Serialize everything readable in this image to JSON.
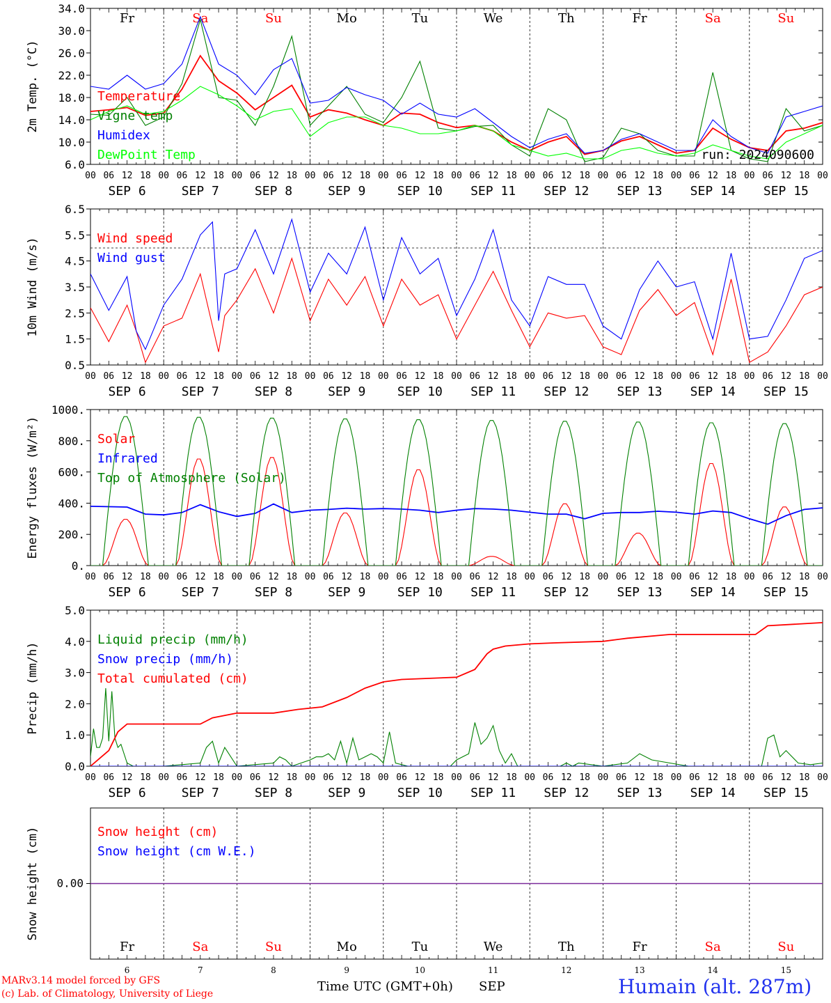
{
  "chart_data": [
    {
      "type": "line",
      "id": "temp",
      "ylabel": "2m Temp. (°C)",
      "ylim": [
        6,
        34
      ],
      "yticks": [
        "6.0",
        "10.0",
        "14.0",
        "18.0",
        "22.0",
        "26.0",
        "30.0",
        "34.0"
      ],
      "day_names": [
        "Fr",
        "Sa",
        "Su",
        "Mo",
        "Tu",
        "We",
        "Th",
        "Fr",
        "Sa",
        "Su"
      ],
      "weekend_indices": [
        1,
        2,
        8,
        9
      ],
      "annotation": "run: 2024090600",
      "series": [
        {
          "name": "Temperature",
          "color": "#ff0000",
          "x": [
            0,
            6,
            12,
            18,
            24,
            30,
            36,
            42,
            48,
            54,
            60,
            66,
            72,
            78,
            84,
            90,
            96,
            102,
            108,
            114,
            120,
            126,
            132,
            138,
            144,
            150,
            156,
            162,
            168,
            174,
            180,
            186,
            192,
            198,
            204,
            210,
            216,
            222,
            228,
            234,
            240
          ],
          "values": [
            15.5,
            15.8,
            16.2,
            14.8,
            15.2,
            19.5,
            25.5,
            21.0,
            18.8,
            15.8,
            18.0,
            20.2,
            14.5,
            15.8,
            15.2,
            14.0,
            13.0,
            15.2,
            15.0,
            13.5,
            12.6,
            13.0,
            12.0,
            10.0,
            8.5,
            10.0,
            11.0,
            7.8,
            8.5,
            10.2,
            11.0,
            9.5,
            8.0,
            8.5,
            12.5,
            10.5,
            9.0,
            8.5,
            12.0,
            12.5,
            13.5
          ]
        },
        {
          "name": "Vigne temp",
          "color": "#008000",
          "x": [
            0,
            6,
            12,
            18,
            24,
            30,
            36,
            42,
            48,
            54,
            60,
            66,
            72,
            78,
            84,
            90,
            96,
            102,
            108,
            114,
            120,
            126,
            132,
            138,
            144,
            150,
            156,
            162,
            168,
            174,
            180,
            186,
            192,
            198,
            204,
            210,
            216,
            222,
            228,
            234,
            240
          ],
          "values": [
            15.0,
            14.8,
            18.0,
            13.0,
            14.5,
            20.5,
            32.0,
            18.0,
            17.5,
            13.0,
            20.0,
            29.0,
            13.0,
            16.5,
            20.0,
            15.0,
            13.5,
            18.0,
            24.5,
            12.5,
            12.0,
            12.8,
            13.0,
            9.5,
            7.5,
            16.0,
            14.0,
            6.5,
            7.2,
            12.5,
            11.5,
            8.5,
            7.5,
            7.5,
            22.5,
            8.5,
            7.0,
            6.5,
            16.0,
            12.0,
            13.0
          ]
        },
        {
          "name": "Humidex",
          "color": "#0000ff",
          "x": [
            0,
            6,
            12,
            18,
            24,
            30,
            36,
            42,
            48,
            54,
            60,
            66,
            72,
            78,
            84,
            90,
            96,
            102,
            108,
            114,
            120,
            126,
            132,
            138,
            144,
            150,
            156,
            162,
            168,
            174,
            180,
            186,
            192,
            198,
            204,
            210,
            216,
            222,
            228,
            234,
            240
          ],
          "values": [
            20.0,
            19.5,
            22.0,
            19.5,
            20.5,
            24.0,
            32.5,
            24.0,
            22.0,
            18.5,
            23.0,
            25.0,
            17.0,
            17.5,
            19.8,
            18.5,
            17.5,
            15.0,
            17.0,
            15.0,
            14.5,
            16.0,
            13.5,
            11.0,
            9.0,
            10.5,
            11.5,
            8.0,
            8.5,
            10.5,
            11.5,
            10.0,
            8.5,
            8.5,
            14.0,
            11.0,
            9.0,
            8.0,
            14.5,
            15.5,
            16.5
          ]
        },
        {
          "name": "DewPoint Temp",
          "color": "#00ff00",
          "x": [
            0,
            6,
            12,
            18,
            24,
            30,
            36,
            42,
            48,
            54,
            60,
            66,
            72,
            78,
            84,
            90,
            96,
            102,
            108,
            114,
            120,
            126,
            132,
            138,
            144,
            150,
            156,
            162,
            168,
            174,
            180,
            186,
            192,
            198,
            204,
            210,
            216,
            222,
            228,
            234,
            240
          ],
          "values": [
            14.0,
            15.5,
            16.5,
            15.0,
            15.5,
            17.5,
            20.0,
            18.5,
            16.5,
            14.0,
            15.5,
            16.0,
            11.0,
            13.5,
            14.5,
            14.5,
            13.0,
            12.5,
            11.5,
            11.5,
            12.0,
            13.0,
            12.0,
            9.5,
            8.5,
            7.5,
            8.0,
            7.0,
            7.0,
            8.5,
            9.0,
            8.0,
            7.5,
            8.0,
            9.5,
            8.5,
            7.5,
            7.0,
            10.0,
            11.5,
            13.0
          ]
        }
      ]
    },
    {
      "type": "line",
      "id": "wind",
      "ylabel": "10m Wind (m/s)",
      "ylim": [
        0.5,
        6.5
      ],
      "yticks": [
        "0.5",
        "1.5",
        "2.5",
        "3.5",
        "4.5",
        "5.5",
        "6.5"
      ],
      "ref_line": 5.0,
      "series": [
        {
          "name": "Wind speed",
          "color": "#ff0000",
          "x": [
            0,
            6,
            12,
            15,
            18,
            24,
            30,
            36,
            40,
            42,
            44,
            48,
            54,
            60,
            66,
            72,
            78,
            84,
            90,
            96,
            102,
            108,
            114,
            120,
            126,
            132,
            138,
            144,
            150,
            156,
            162,
            168,
            174,
            180,
            186,
            192,
            198,
            204,
            210,
            216,
            222,
            228,
            234,
            240
          ],
          "values": [
            2.7,
            1.4,
            2.8,
            1.8,
            0.6,
            2.0,
            2.3,
            4.0,
            2.0,
            1.0,
            2.4,
            3.0,
            4.2,
            2.5,
            4.6,
            2.2,
            3.8,
            2.8,
            3.9,
            2.0,
            3.8,
            2.8,
            3.2,
            1.5,
            2.8,
            4.1,
            2.6,
            1.2,
            2.5,
            2.3,
            2.4,
            1.2,
            0.9,
            2.6,
            3.4,
            2.4,
            2.9,
            0.9,
            3.8,
            0.6,
            1.0,
            2.0,
            3.2,
            3.5
          ]
        },
        {
          "name": "Wind gust",
          "color": "#0000ff",
          "x": [
            0,
            6,
            12,
            15,
            18,
            24,
            30,
            36,
            40,
            42,
            44,
            48,
            54,
            60,
            66,
            72,
            78,
            84,
            90,
            96,
            102,
            108,
            114,
            120,
            126,
            132,
            138,
            144,
            150,
            156,
            162,
            168,
            174,
            180,
            186,
            192,
            198,
            204,
            210,
            216,
            222,
            228,
            234,
            240
          ],
          "values": [
            4.0,
            2.6,
            3.9,
            1.8,
            1.1,
            2.8,
            3.8,
            5.5,
            6.0,
            2.2,
            4.0,
            4.2,
            5.7,
            4.0,
            6.1,
            3.3,
            4.8,
            4.0,
            5.8,
            3.0,
            5.4,
            4.0,
            4.6,
            2.4,
            3.8,
            5.7,
            3.0,
            2.0,
            3.9,
            3.6,
            3.6,
            2.0,
            1.5,
            3.4,
            4.5,
            3.5,
            3.7,
            1.5,
            4.8,
            1.5,
            1.6,
            3.0,
            4.6,
            4.9
          ]
        }
      ]
    },
    {
      "type": "line",
      "id": "energy",
      "ylabel": "Energy fluxes (W/m²)",
      "ylim": [
        0,
        1000
      ],
      "yticks": [
        "0.",
        "200.",
        "400.",
        "600.",
        "800.",
        "1000."
      ],
      "series": [
        {
          "name": "Solar",
          "color": "#ff0000",
          "daily_peaks": [
            300,
            690,
            700,
            340,
            620,
            60,
            400,
            210,
            660,
            380
          ]
        },
        {
          "name": "Infrared",
          "color": "#0000ff",
          "x": [
            0,
            12,
            18,
            24,
            30,
            36,
            42,
            48,
            54,
            60,
            66,
            72,
            78,
            84,
            90,
            96,
            102,
            108,
            114,
            120,
            126,
            132,
            138,
            144,
            150,
            156,
            162,
            168,
            174,
            180,
            186,
            192,
            198,
            204,
            210,
            216,
            222,
            228,
            234,
            240
          ],
          "values": [
            380,
            375,
            330,
            325,
            340,
            390,
            345,
            315,
            335,
            395,
            340,
            355,
            360,
            368,
            362,
            365,
            362,
            355,
            340,
            355,
            365,
            362,
            355,
            342,
            330,
            330,
            300,
            335,
            340,
            340,
            348,
            342,
            330,
            350,
            340,
            300,
            265,
            320,
            360,
            370
          ]
        },
        {
          "name": "Top of Atmosphere (Solar)",
          "color": "#008000",
          "daily_peaks": [
            960,
            955,
            950,
            945,
            940,
            935,
            930,
            925,
            920,
            915
          ]
        }
      ]
    },
    {
      "type": "line",
      "id": "precip",
      "ylabel": "Precip (mm/h)",
      "ylim": [
        0,
        5
      ],
      "yticks": [
        "0.0",
        "1.0",
        "2.0",
        "3.0",
        "4.0",
        "5.0"
      ],
      "series": [
        {
          "name": "Liquid precip (mm/h)",
          "color": "#008000",
          "x": [
            0,
            1,
            2,
            3,
            4,
            5,
            6,
            7,
            8,
            9,
            10,
            12,
            14,
            16,
            20,
            24,
            36,
            38,
            40,
            42,
            44,
            48,
            60,
            62,
            64,
            66,
            72,
            74,
            76,
            78,
            80,
            82,
            84,
            86,
            88,
            90,
            92,
            94,
            96,
            98,
            100,
            104,
            112,
            118,
            120,
            124,
            126,
            128,
            130,
            132,
            134,
            136,
            138,
            140,
            144,
            154,
            156,
            158,
            160,
            168,
            176,
            180,
            184,
            196,
            216,
            220,
            222,
            224,
            226,
            228,
            232,
            236,
            240
          ],
          "values": [
            0.3,
            1.2,
            0.6,
            0.6,
            0.9,
            2.5,
            0.8,
            2.4,
            0.9,
            0.6,
            0.7,
            0.1,
            0.0,
            0.0,
            0.0,
            0.0,
            0.1,
            0.6,
            0.8,
            0.1,
            0.6,
            0.0,
            0.1,
            0.3,
            0.2,
            0.0,
            0.2,
            0.3,
            0.3,
            0.4,
            0.2,
            0.8,
            0.1,
            0.9,
            0.2,
            0.3,
            0.4,
            0.3,
            0.1,
            1.1,
            0.1,
            0.0,
            0.0,
            0.0,
            0.2,
            0.4,
            1.4,
            0.7,
            0.9,
            1.3,
            0.5,
            0.1,
            0.4,
            0.0,
            0.0,
            0.0,
            0.1,
            0.0,
            0.1,
            0.0,
            0.1,
            0.4,
            0.2,
            0.0,
            0.0,
            0.0,
            0.9,
            1.0,
            0.3,
            0.5,
            0.1,
            0.05,
            0.1
          ]
        },
        {
          "name": "Snow precip (mm/h)",
          "color": "#0000ff",
          "x": [
            0,
            240
          ],
          "values": [
            0,
            0
          ]
        },
        {
          "name": "Total cumulated (cm)",
          "color": "#ff0000",
          "x": [
            0,
            6,
            9,
            12,
            36,
            40,
            48,
            60,
            68,
            76,
            84,
            90,
            96,
            102,
            120,
            126,
            130,
            132,
            136,
            144,
            152,
            168,
            176,
            190,
            200,
            210,
            216,
            218,
            222,
            240
          ],
          "values": [
            0,
            0.5,
            1.1,
            1.35,
            1.35,
            1.55,
            1.7,
            1.7,
            1.82,
            1.9,
            2.2,
            2.5,
            2.7,
            2.78,
            2.85,
            3.1,
            3.6,
            3.75,
            3.85,
            3.92,
            3.95,
            4.0,
            4.1,
            4.22,
            4.22,
            4.22,
            4.22,
            4.22,
            4.5,
            4.6
          ]
        }
      ]
    },
    {
      "type": "line",
      "id": "snow",
      "ylabel": "Snow height (cm)",
      "ylim": [
        -1,
        1
      ],
      "yticks": [
        "0.00"
      ],
      "series": [
        {
          "name": "Snow height (cm)",
          "color": "#ff0000",
          "x": [
            0,
            240
          ],
          "values": [
            0,
            0
          ]
        },
        {
          "name": "Snow height (cm W.E.)",
          "color": "#0000ff",
          "x": [
            0,
            240
          ],
          "values": [
            0,
            0
          ]
        }
      ]
    }
  ],
  "axis": {
    "hour_labels": [
      "00",
      "06",
      "12",
      "18"
    ],
    "end_hour_label": "00",
    "date_labels": [
      "SEP 6",
      "SEP 7",
      "SEP 8",
      "SEP 9",
      "SEP 10",
      "SEP 11",
      "SEP 12",
      "SEP 13",
      "SEP 14",
      "SEP 15"
    ],
    "bottom_day_numbers": [
      "6",
      "7",
      "8",
      "9",
      "10",
      "11",
      "12",
      "13",
      "14",
      "15"
    ],
    "xlabel": "Time UTC (GMT+0h)",
    "xlabel_month": "SEP"
  },
  "footer": {
    "model_line": "MARv3.14 model forced by GFS",
    "copyright_line": "(c) Lab. of Climatology, University of Liege",
    "station": "Humain (alt. 287m)"
  },
  "colors": {
    "weekend": "#ff0000",
    "weekday": "#000000",
    "station": "#2233ee"
  }
}
